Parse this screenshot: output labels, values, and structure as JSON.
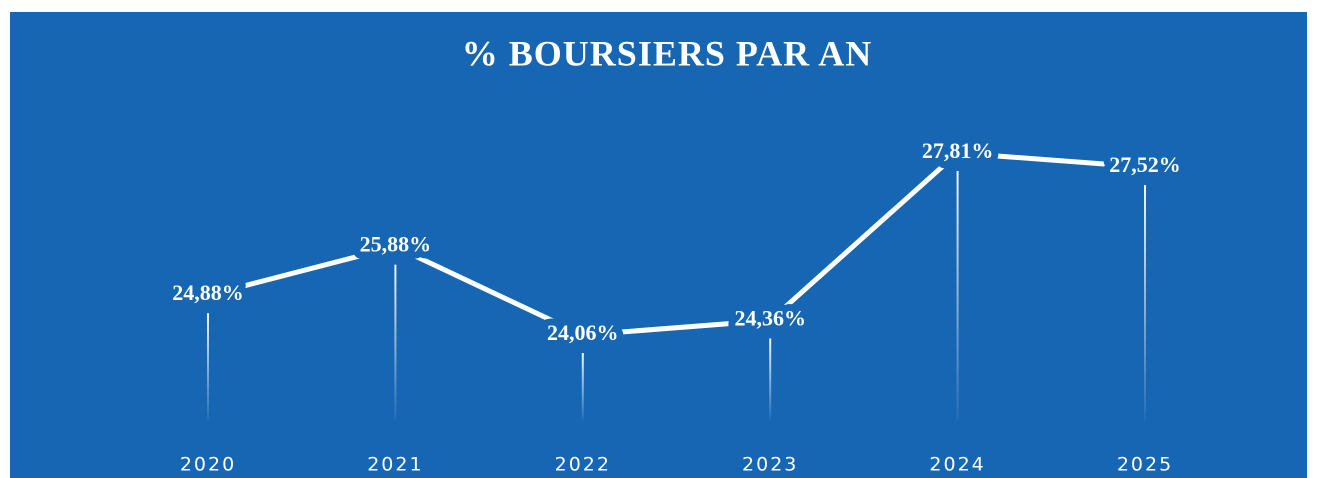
{
  "chart_data": {
    "type": "line",
    "title": "% BOURSIERS PAR AN",
    "categories": [
      "2020",
      "2021",
      "2022",
      "2023",
      "2024",
      "2025"
    ],
    "values": [
      24.88,
      25.88,
      24.06,
      24.36,
      27.81,
      27.52
    ],
    "value_labels": [
      "24,88%",
      "25,88%",
      "24,06%",
      "24,36%",
      "27,81%",
      "27,52%"
    ],
    "color": "#ffffff",
    "background": "#1766b3"
  }
}
